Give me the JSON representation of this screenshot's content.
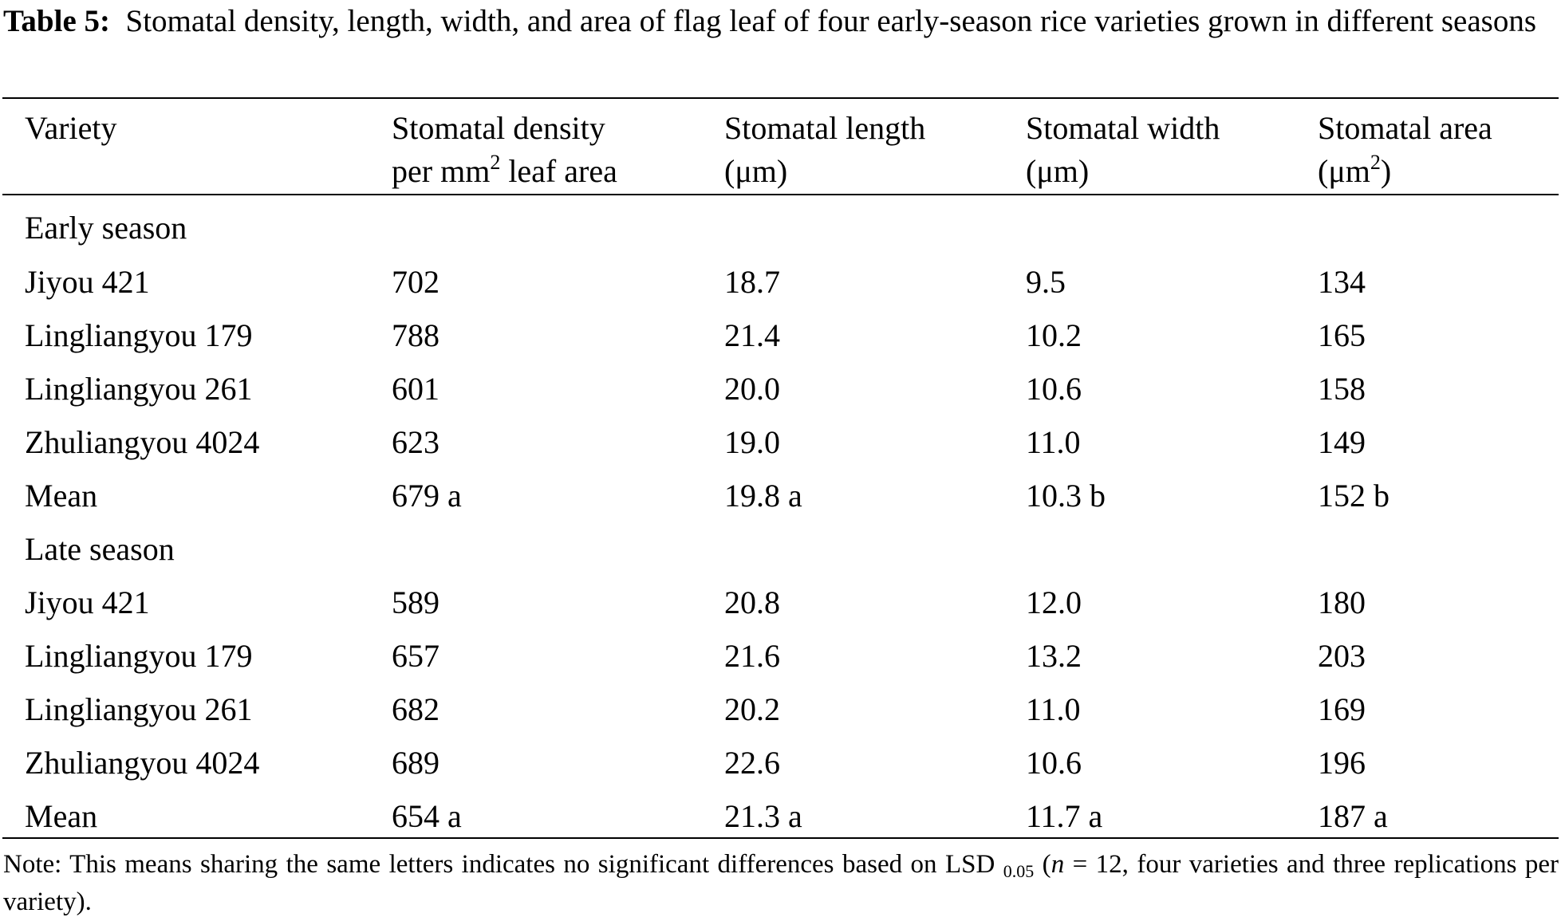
{
  "caption": {
    "label": "Table 5:",
    "text": "Stomatal density, length, width, and area of flag leaf of four early-season rice varieties grown in different seasons"
  },
  "headers": {
    "variety": "Variety",
    "density_line1": "Stomatal density",
    "density_line2_pre": "per mm",
    "density_sup": "2",
    "density_line2_post": " leaf area",
    "length_line1": "Stomatal length",
    "length_line2": "(μm)",
    "width_line1": "Stomatal width",
    "width_line2": "(μm)",
    "area_line1": "Stomatal area",
    "area_line2_pre": "(μm",
    "area_sup": "2",
    "area_line2_post": ")"
  },
  "sections": [
    {
      "title": "Early season",
      "rows": [
        {
          "variety": "Jiyou 421",
          "density": "702",
          "length": "18.7",
          "width": "9.5",
          "area": "134"
        },
        {
          "variety": "Lingliangyou 179",
          "density": "788",
          "length": "21.4",
          "width": "10.2",
          "area": "165"
        },
        {
          "variety": "Lingliangyou 261",
          "density": "601",
          "length": "20.0",
          "width": "10.6",
          "area": "158"
        },
        {
          "variety": "Zhuliangyou 4024",
          "density": "623",
          "length": "19.0",
          "width": "11.0",
          "area": "149"
        },
        {
          "variety": "Mean",
          "density": "679 a",
          "length": "19.8 a",
          "width": "10.3 b",
          "area": "152 b"
        }
      ]
    },
    {
      "title": "Late season",
      "rows": [
        {
          "variety": "Jiyou 421",
          "density": "589",
          "length": "20.8",
          "width": "12.0",
          "area": "180"
        },
        {
          "variety": "Lingliangyou 179",
          "density": "657",
          "length": "21.6",
          "width": "13.2",
          "area": "203"
        },
        {
          "variety": "Lingliangyou 261",
          "density": "682",
          "length": "20.2",
          "width": "11.0",
          "area": "169"
        },
        {
          "variety": "Zhuliangyou 4024",
          "density": "689",
          "length": "22.6",
          "width": "10.6",
          "area": "196"
        },
        {
          "variety": "Mean",
          "density": "654 a",
          "length": "21.3 a",
          "width": "11.7 a",
          "area": "187 a"
        }
      ]
    }
  ],
  "note": {
    "part1": "Note: This means sharing the same letters indicates no significant differences based on LSD",
    "sub": "0.05",
    "part2": " (",
    "n_italic": "n",
    "part3": " = 12, four varieties and three replications per variety)."
  }
}
